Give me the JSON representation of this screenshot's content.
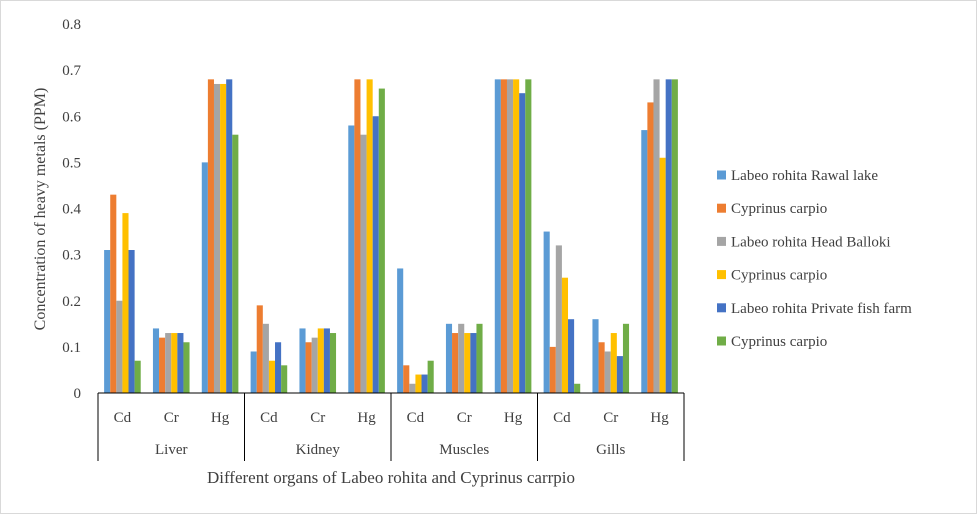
{
  "chart_data": {
    "type": "bar",
    "title": "",
    "xlabel": "Different organs of Labeo rohita and Cyprinus carrpio",
    "ylabel": "Concentration of heavy metals (PPM)",
    "ylim": [
      0,
      0.8
    ],
    "yticks": [
      "0",
      "0.1",
      "0.2",
      "0.3",
      "0.4",
      "0.5",
      "0.6",
      "0.7",
      "0.8"
    ],
    "yticks_values": [
      0,
      0.1,
      0.2,
      0.3,
      0.4,
      0.5,
      0.6,
      0.7,
      0.8
    ],
    "grid": false,
    "legend_position": "right",
    "groups": [
      {
        "label": "Liver",
        "categories": [
          "Cd",
          "Cr",
          "Hg"
        ]
      },
      {
        "label": "Kidney",
        "categories": [
          "Cd",
          "Cr",
          "Hg"
        ]
      },
      {
        "label": "Muscles",
        "categories": [
          "Cd",
          "Cr",
          "Hg"
        ]
      },
      {
        "label": "Gills",
        "categories": [
          "Cd",
          "Cr",
          "Hg"
        ]
      }
    ],
    "series": [
      {
        "name": "Labeo rohita Rawal lake",
        "color": "#5b9bd5",
        "values": [
          0.31,
          0.14,
          0.5,
          0.09,
          0.14,
          0.58,
          0.27,
          0.15,
          0.68,
          0.35,
          0.16,
          0.57
        ]
      },
      {
        "name": "Cyprinus carpio",
        "color": "#ed7d31",
        "values": [
          0.43,
          0.12,
          0.68,
          0.19,
          0.11,
          0.68,
          0.06,
          0.13,
          0.68,
          0.1,
          0.11,
          0.63
        ]
      },
      {
        "name": "Labeo rohita Head Balloki",
        "color": "#a5a5a5",
        "values": [
          0.2,
          0.13,
          0.67,
          0.15,
          0.12,
          0.56,
          0.02,
          0.15,
          0.68,
          0.32,
          0.09,
          0.68
        ]
      },
      {
        "name": "Cyprinus carpio",
        "color": "#ffc000",
        "values": [
          0.39,
          0.13,
          0.67,
          0.07,
          0.14,
          0.68,
          0.04,
          0.13,
          0.68,
          0.25,
          0.13,
          0.51
        ]
      },
      {
        "name": "Labeo rohita Private fish farm",
        "color": "#4472c4",
        "values": [
          0.31,
          0.13,
          0.68,
          0.11,
          0.14,
          0.6,
          0.04,
          0.13,
          0.65,
          0.16,
          0.08,
          0.68
        ]
      },
      {
        "name": "Cyprinus carpio",
        "color": "#70ad47",
        "values": [
          0.07,
          0.11,
          0.56,
          0.06,
          0.13,
          0.66,
          0.07,
          0.15,
          0.68,
          0.02,
          0.15,
          0.68
        ]
      }
    ]
  }
}
